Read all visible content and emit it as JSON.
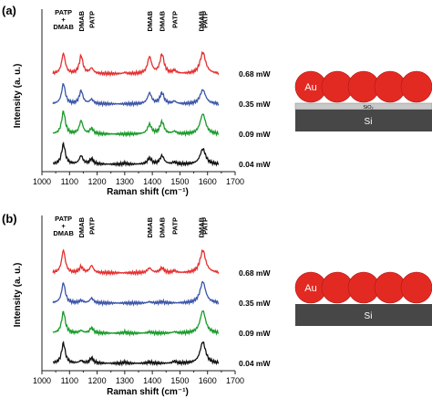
{
  "colors": {
    "trace_068": "#e53030",
    "trace_035": "#3b55a8",
    "trace_009": "#1a9a2a",
    "trace_004": "#111111",
    "au_particle": "#e32a22",
    "sio2_layer": "#c8c8c8",
    "si_substrate": "#474747",
    "axis": "#222222"
  },
  "chart_data": [
    {
      "type": "line",
      "panel_label": "(a)",
      "xlabel": "Raman shift (cm⁻¹)",
      "ylabel": "Intensity (a. u.)",
      "xlim": [
        1000,
        1700
      ],
      "x_ticks": [
        1000,
        1100,
        1200,
        1300,
        1400,
        1500,
        1600,
        1700
      ],
      "x_tick_labels": [
        "1000",
        "1100",
        "1200",
        "1300",
        "1400",
        "1500",
        "1600",
        "1700"
      ],
      "grid": false,
      "y_tick_labels": false,
      "peak_annotations": [
        {
          "x": 1078,
          "lines": [
            "PATP",
            "+",
            "DMAB"
          ]
        },
        {
          "x": 1142,
          "lines": [
            "DMAB"
          ]
        },
        {
          "x": 1180,
          "lines": [
            "PATP"
          ]
        },
        {
          "x": 1390,
          "lines": [
            "DMAB"
          ]
        },
        {
          "x": 1435,
          "lines": [
            "DMAB"
          ]
        },
        {
          "x": 1480,
          "lines": [
            "PATP"
          ]
        },
        {
          "x": 1577,
          "lines": [
            "DMAB"
          ]
        },
        {
          "x": 1590,
          "lines": [
            "PATP"
          ]
        }
      ],
      "series": [
        {
          "name": "0.68 mW",
          "color": "#e53030",
          "offset": 3,
          "peaks": [
            [
              1078,
              0.85,
              8
            ],
            [
              1142,
              0.75,
              8
            ],
            [
              1180,
              0.22,
              8
            ],
            [
              1300,
              0.05,
              6
            ],
            [
              1390,
              0.7,
              9
            ],
            [
              1435,
              0.8,
              9
            ],
            [
              1480,
              0.12,
              8
            ],
            [
              1583,
              0.9,
              12
            ]
          ]
        },
        {
          "name": "0.35 mW",
          "color": "#3b55a8",
          "offset": 2,
          "peaks": [
            [
              1078,
              0.85,
              8
            ],
            [
              1142,
              0.55,
              8
            ],
            [
              1180,
              0.18,
              8
            ],
            [
              1390,
              0.45,
              9
            ],
            [
              1435,
              0.45,
              9
            ],
            [
              1480,
              0.1,
              8
            ],
            [
              1583,
              0.6,
              12
            ]
          ]
        },
        {
          "name": "0.09 mW",
          "color": "#1a9a2a",
          "offset": 1,
          "peaks": [
            [
              1078,
              0.95,
              8
            ],
            [
              1142,
              0.55,
              8
            ],
            [
              1180,
              0.22,
              8
            ],
            [
              1390,
              0.4,
              9
            ],
            [
              1435,
              0.5,
              9
            ],
            [
              1480,
              0.1,
              8
            ],
            [
              1583,
              0.85,
              12
            ]
          ]
        },
        {
          "name": "0.04 mW",
          "color": "#111111",
          "offset": 0,
          "peaks": [
            [
              1078,
              0.85,
              8
            ],
            [
              1142,
              0.35,
              8
            ],
            [
              1180,
              0.22,
              8
            ],
            [
              1300,
              0.05,
              6
            ],
            [
              1390,
              0.25,
              9
            ],
            [
              1435,
              0.35,
              9
            ],
            [
              1480,
              0.08,
              8
            ],
            [
              1583,
              0.65,
              12
            ]
          ]
        }
      ],
      "inset": {
        "particle_label": "Au",
        "oxide_label": "SiO₂",
        "substrate_label": "Si",
        "particle_count": 5,
        "has_oxide_layer": true
      }
    },
    {
      "type": "line",
      "panel_label": "(b)",
      "xlabel": "Raman shift (cm⁻¹)",
      "ylabel": "Intensity (a. u.)",
      "xlim": [
        1000,
        1700
      ],
      "x_ticks": [
        1000,
        1100,
        1200,
        1300,
        1400,
        1500,
        1600,
        1700
      ],
      "x_tick_labels": [
        "1000",
        "1100",
        "1200",
        "1300",
        "1400",
        "1500",
        "1600",
        "1700"
      ],
      "grid": false,
      "y_tick_labels": false,
      "peak_annotations": [
        {
          "x": 1078,
          "lines": [
            "PATP",
            "+",
            "DMAB"
          ]
        },
        {
          "x": 1142,
          "lines": [
            "DMAB"
          ]
        },
        {
          "x": 1180,
          "lines": [
            "PATP"
          ]
        },
        {
          "x": 1390,
          "lines": [
            "DMAB"
          ]
        },
        {
          "x": 1435,
          "lines": [
            "DMAB"
          ]
        },
        {
          "x": 1480,
          "lines": [
            "PATP"
          ]
        },
        {
          "x": 1577,
          "lines": [
            "DMAB"
          ]
        },
        {
          "x": 1590,
          "lines": [
            "PATP"
          ]
        }
      ],
      "series": [
        {
          "name": "0.68 mW",
          "color": "#e53030",
          "offset": 3,
          "peaks": [
            [
              1078,
              0.95,
              8
            ],
            [
              1142,
              0.25,
              8
            ],
            [
              1180,
              0.3,
              8
            ],
            [
              1390,
              0.2,
              9
            ],
            [
              1435,
              0.2,
              9
            ],
            [
              1480,
              0.08,
              8
            ],
            [
              1583,
              0.95,
              12
            ]
          ]
        },
        {
          "name": "0.35 mW",
          "color": "#3b55a8",
          "offset": 2,
          "peaks": [
            [
              1078,
              0.85,
              8
            ],
            [
              1142,
              0.1,
              8
            ],
            [
              1180,
              0.2,
              8
            ],
            [
              1390,
              0.05,
              9
            ],
            [
              1435,
              0.05,
              9
            ],
            [
              1583,
              0.9,
              12
            ]
          ]
        },
        {
          "name": "0.09 mW",
          "color": "#1a9a2a",
          "offset": 1,
          "peaks": [
            [
              1078,
              0.9,
              8
            ],
            [
              1142,
              0.1,
              8
            ],
            [
              1180,
              0.22,
              8
            ],
            [
              1300,
              0.05,
              6
            ],
            [
              1390,
              0.05,
              9
            ],
            [
              1480,
              0.05,
              8
            ],
            [
              1583,
              0.95,
              12
            ]
          ]
        },
        {
          "name": "0.04 mW",
          "color": "#111111",
          "offset": 0,
          "peaks": [
            [
              1078,
              0.85,
              8
            ],
            [
              1142,
              0.1,
              8
            ],
            [
              1180,
              0.22,
              8
            ],
            [
              1300,
              0.05,
              6
            ],
            [
              1390,
              0.05,
              9
            ],
            [
              1480,
              0.08,
              8
            ],
            [
              1583,
              0.9,
              12
            ]
          ]
        }
      ],
      "inset": {
        "particle_label": "Au",
        "oxide_label": "",
        "substrate_label": "Si",
        "particle_count": 5,
        "has_oxide_layer": false
      }
    }
  ]
}
